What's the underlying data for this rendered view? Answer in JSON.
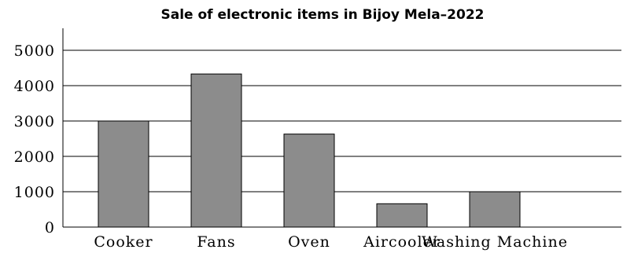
{
  "chart_data": {
    "type": "bar",
    "title": "Sale of electronic items in Bijoy Mela–2022",
    "xlabel": "",
    "ylabel": "",
    "categories": [
      "Cooker",
      "Fans",
      "Oven",
      "Aircooler",
      "Washing Machine"
    ],
    "values": [
      3000,
      4330,
      2630,
      660,
      1000
    ],
    "ylim": [
      0,
      5000
    ],
    "yticks": [
      0,
      1000,
      2000,
      3000,
      4000,
      5000
    ],
    "grid": true,
    "legend": "none",
    "bar_color": "#8c8c8c",
    "bar_edge_color": "#000000"
  }
}
